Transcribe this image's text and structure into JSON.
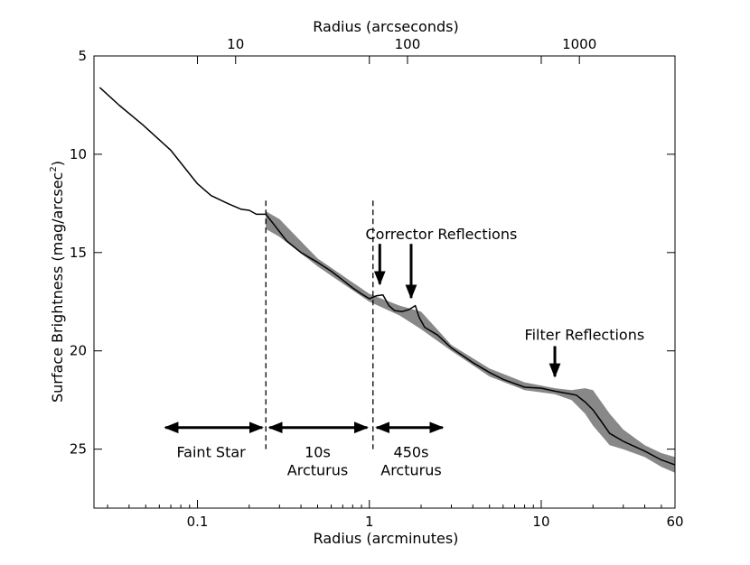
{
  "chart_data": {
    "type": "line",
    "title": "",
    "xlabel": "Radius (arcminutes)",
    "xlabel_top": "Radius (arcseconds)",
    "ylabel": "Surface Brightness (mag/arcsec",
    "ylabel_sup": "2",
    "ylabel_close": ")",
    "xscale": "log",
    "xlim": [
      0.025,
      60
    ],
    "ylim": [
      28,
      5
    ],
    "x_ticks": [
      0.1,
      1,
      10,
      60
    ],
    "x_tick_labels": [
      "0.1",
      "1",
      "10",
      "60"
    ],
    "x_top_ticks_arcsec": [
      10,
      100,
      1000
    ],
    "x_top_tick_labels": [
      "10",
      "100",
      "1000"
    ],
    "y_ticks": [
      5,
      10,
      15,
      20,
      25
    ],
    "y_tick_labels": [
      "5",
      "10",
      "15",
      "20",
      "25"
    ],
    "series": [
      {
        "name": "profile",
        "x": [
          0.027,
          0.035,
          0.048,
          0.07,
          0.1,
          0.12,
          0.15,
          0.18,
          0.2,
          0.22,
          0.25,
          0.28,
          0.33,
          0.4,
          0.5,
          0.6,
          0.7,
          0.8,
          0.9,
          1.0,
          1.1,
          1.2,
          1.3,
          1.4,
          1.55,
          1.7,
          1.85,
          1.95,
          2.1,
          2.5,
          3.0,
          4.0,
          5.0,
          6.0,
          8.0,
          10.0,
          12.0,
          15.0,
          16.0,
          18.0,
          20.0,
          22.0,
          25.0,
          30.0,
          40.0,
          50.0,
          60.0
        ],
        "y": [
          6.6,
          7.5,
          8.5,
          9.8,
          11.5,
          12.1,
          12.5,
          12.8,
          12.85,
          13.05,
          13.05,
          13.6,
          14.4,
          15.0,
          15.5,
          15.95,
          16.4,
          16.8,
          17.1,
          17.35,
          17.2,
          17.15,
          17.7,
          17.95,
          18.0,
          17.9,
          17.7,
          18.3,
          18.8,
          19.2,
          19.85,
          20.6,
          21.1,
          21.45,
          21.85,
          21.9,
          22.05,
          22.2,
          22.25,
          22.6,
          23.0,
          23.5,
          24.2,
          24.6,
          25.1,
          25.55,
          25.8
        ]
      },
      {
        "name": "uncertainty band",
        "x": [
          0.25,
          0.3,
          0.5,
          1.0,
          1.5,
          2.0,
          3.0,
          5.0,
          8.0,
          12.0,
          15.0,
          18.0,
          20.0,
          25.0,
          30.0,
          40.0,
          50.0,
          60.0
        ],
        "y_low": [
          12.9,
          13.3,
          15.3,
          17.1,
          17.7,
          18.0,
          19.7,
          20.9,
          21.6,
          21.9,
          22.0,
          21.9,
          22.0,
          23.2,
          24.0,
          24.8,
          25.2,
          25.4
        ],
        "y_high": [
          13.8,
          14.2,
          15.7,
          17.5,
          18.2,
          18.9,
          20.0,
          21.3,
          22.0,
          22.2,
          22.5,
          23.2,
          23.8,
          24.8,
          25.0,
          25.4,
          25.9,
          26.2
        ]
      }
    ],
    "vertical_lines": [
      0.25,
      1.05
    ],
    "ranges": [
      {
        "x_start": 0.062,
        "x_end": 0.25,
        "label": "Faint Star",
        "label_x": 0.12
      },
      {
        "x_start": 0.25,
        "x_end": 1.02,
        "label_lines": [
          "10s",
          "Arcturus"
        ],
        "label_x": 0.5
      },
      {
        "x_start": 1.05,
        "x_end": 2.8,
        "label_lines": [
          "450s",
          "Arcturus"
        ],
        "label_x": 1.75
      }
    ],
    "arrow_y": 23.9,
    "annotations": [
      {
        "text": "Corrector Reflections",
        "x": 0.95,
        "y": 14.1
      },
      {
        "text": "Filter Reflections",
        "x": 8.0,
        "y": 19.2
      }
    ],
    "arrows": [
      {
        "x": 1.15,
        "y_start": 14.1,
        "y_end": 16.6
      },
      {
        "x": 1.75,
        "y_start": 14.1,
        "y_end": 17.3
      },
      {
        "x": 12.0,
        "y_start": 19.3,
        "y_end": 21.3
      }
    ]
  }
}
